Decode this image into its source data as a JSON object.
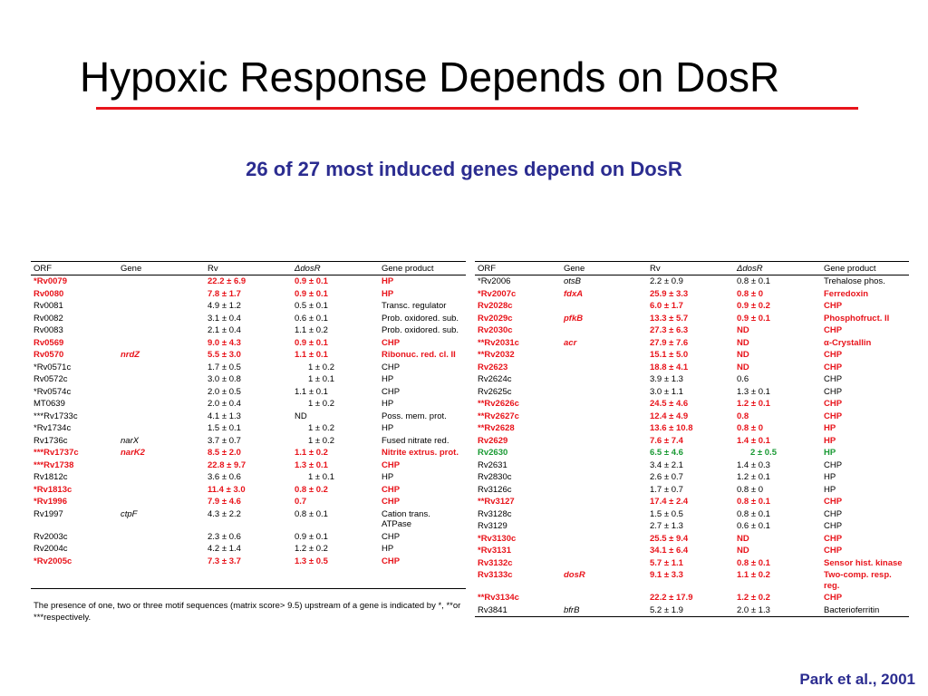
{
  "slide": {
    "title": "Hypoxic Response Depends on DosR",
    "subtitle": "26 of 27 most induced genes depend on DosR",
    "footnote": "The presence of one, two or three motif sequences (matrix score> 9.5) upstream of a gene is indicated by *, **or ***respectively.",
    "citation": "Park et al., 2001"
  },
  "headers": [
    "ORF",
    "Gene",
    "Rv",
    "ΔdosR",
    "Gene product"
  ],
  "colors": {
    "red": "#e8141b",
    "green": "#1a9a34",
    "navy": "#2b2c90"
  },
  "left_rows": [
    {
      "orf": "*Rv0079",
      "gene": "",
      "rv": "22.2 ± 6.9",
      "dosr": "0.9 ± 0.1",
      "product": "HP",
      "style": "red"
    },
    {
      "orf": "Rv0080",
      "gene": "",
      "rv": "7.8 ± 1.7",
      "dosr": "0.9 ± 0.1",
      "product": "HP",
      "style": "red"
    },
    {
      "orf": "Rv0081",
      "gene": "",
      "rv": "4.9 ± 1.2",
      "dosr": "0.5 ± 0.1",
      "product": "Transc. regulator",
      "style": ""
    },
    {
      "orf": "Rv0082",
      "gene": "",
      "rv": "3.1 ± 0.4",
      "dosr": "0.6 ± 0.1",
      "product": "Prob. oxidored. sub.",
      "style": ""
    },
    {
      "orf": "Rv0083",
      "gene": "",
      "rv": "2.1 ± 0.4",
      "dosr": "1.1 ± 0.2",
      "product": "Prob. oxidored. sub.",
      "style": ""
    },
    {
      "orf": "Rv0569",
      "gene": "",
      "rv": "9.0 ± 4.3",
      "dosr": "0.9 ± 0.1",
      "product": "CHP",
      "style": "red"
    },
    {
      "orf": "Rv0570",
      "gene": "nrdZ",
      "rv": "5.5 ± 3.0",
      "dosr": "1.1 ± 0.1",
      "product": "Ribonuc. red. cl. II",
      "style": "red"
    },
    {
      "orf": "*Rv0571c",
      "gene": "",
      "rv": "1.7 ± 0.5",
      "dosr": "1 ± 0.2",
      "product": "CHP",
      "style": "",
      "center": true
    },
    {
      "orf": "Rv0572c",
      "gene": "",
      "rv": "3.0 ± 0.8",
      "dosr": "1 ± 0.1",
      "product": "HP",
      "style": "",
      "center": true
    },
    {
      "orf": "*Rv0574c",
      "gene": "",
      "rv": "2.0 ± 0.5",
      "dosr": "1.1 ± 0.1",
      "product": "CHP",
      "style": ""
    },
    {
      "orf": "MT0639",
      "gene": "",
      "rv": "2.0 ± 0.4",
      "dosr": "1 ± 0.2",
      "product": "HP",
      "style": "",
      "center": true
    },
    {
      "orf": "***Rv1733c",
      "gene": "",
      "rv": "4.1 ± 1.3",
      "dosr": "ND",
      "product": "Poss. mem. prot.",
      "style": ""
    },
    {
      "orf": "*Rv1734c",
      "gene": "",
      "rv": "1.5 ± 0.1",
      "dosr": "1 ± 0.2",
      "product": "HP",
      "style": "",
      "center": true
    },
    {
      "orf": "Rv1736c",
      "gene": "narX",
      "rv": "3.7 ± 0.7",
      "dosr": "1 ± 0.2",
      "product": "Fused nitrate red.",
      "style": "",
      "center": true
    },
    {
      "orf": "***Rv1737c",
      "gene": "narK2",
      "rv": "8.5 ± 2.0",
      "dosr": "1.1 ± 0.2",
      "product": "Nitrite extrus. prot.",
      "style": "red"
    },
    {
      "orf": "***Rv1738",
      "gene": "",
      "rv": "22.8 ± 9.7",
      "dosr": "1.3 ± 0.1",
      "product": "CHP",
      "style": "red"
    },
    {
      "orf": "Rv1812c",
      "gene": "",
      "rv": "3.6 ± 0.6",
      "dosr": "1 ± 0.1",
      "product": "HP",
      "style": "",
      "center": true
    },
    {
      "orf": "*Rv1813c",
      "gene": "",
      "rv": "11.4 ± 3.0",
      "dosr": "0.8 ± 0.2",
      "product": "CHP",
      "style": "red"
    },
    {
      "orf": "*Rv1996",
      "gene": "",
      "rv": "7.9 ± 4.6",
      "dosr": "0.7",
      "product": "CHP",
      "style": "red"
    },
    {
      "orf": "Rv1997",
      "gene": "ctpF",
      "rv": "4.3 ± 2.2",
      "dosr": "0.8 ± 0.1",
      "product": "Cation trans.",
      "product2": "ATPase",
      "style": ""
    },
    {
      "orf": "Rv2003c",
      "gene": "",
      "rv": "2.3 ± 0.6",
      "dosr": "0.9 ± 0.1",
      "product": "CHP",
      "style": ""
    },
    {
      "orf": "Rv2004c",
      "gene": "",
      "rv": "4.2 ± 1.4",
      "dosr": "1.2 ± 0.2",
      "product": "HP",
      "style": ""
    },
    {
      "orf": "*Rv2005c",
      "gene": "",
      "rv": "7.3 ± 3.7",
      "dosr": "1.3 ± 0.5",
      "product": "CHP",
      "style": "red",
      "pad": true
    }
  ],
  "right_rows": [
    {
      "orf": "*Rv2006",
      "gene": "otsB",
      "rv": "2.2 ± 0.9",
      "dosr": "0.8 ± 0.1",
      "product": "Trehalose phos.",
      "style": ""
    },
    {
      "orf": "*Rv2007c",
      "gene": "fdxA",
      "rv": "25.9 ± 3.3",
      "dosr": "0.8 ± 0",
      "product": "Ferredoxin",
      "style": "red"
    },
    {
      "orf": "Rv2028c",
      "gene": "",
      "rv": "6.0 ± 1.7",
      "dosr": "0.9 ± 0.2",
      "product": "CHP",
      "style": "red"
    },
    {
      "orf": "Rv2029c",
      "gene": "pfkB",
      "rv": "13.3 ± 5.7",
      "dosr": "0.9 ± 0.1",
      "product": "Phosphofruct. II",
      "style": "red"
    },
    {
      "orf": "Rv2030c",
      "gene": "",
      "rv": "27.3 ± 6.3",
      "dosr": "ND",
      "product": "CHP",
      "style": "red"
    },
    {
      "orf": "**Rv2031c",
      "gene": "acr",
      "rv": "27.9 ± 7.6",
      "dosr": "ND",
      "product": "α-Crystallin",
      "style": "red"
    },
    {
      "orf": "**Rv2032",
      "gene": "",
      "rv": "15.1 ± 5.0",
      "dosr": "ND",
      "product": "CHP",
      "style": "red"
    },
    {
      "orf": "Rv2623",
      "gene": "",
      "rv": "18.8 ± 4.1",
      "dosr": "ND",
      "product": "CHP",
      "style": "red"
    },
    {
      "orf": "Rv2624c",
      "gene": "",
      "rv": "3.9 ± 1.3",
      "dosr": "0.6",
      "product": "CHP",
      "style": ""
    },
    {
      "orf": "Rv2625c",
      "gene": "",
      "rv": "3.0 ± 1.1",
      "dosr": "1.3 ± 0.1",
      "product": "CHP",
      "style": ""
    },
    {
      "orf": "**Rv2626c",
      "gene": "",
      "rv": "24.5 ± 4.6",
      "dosr": "1.2 ± 0.1",
      "product": "CHP",
      "style": "red"
    },
    {
      "orf": "**Rv2627c",
      "gene": "",
      "rv": "12.4 ± 4.9",
      "dosr": "0.8",
      "product": "CHP",
      "style": "red"
    },
    {
      "orf": "**Rv2628",
      "gene": "",
      "rv": "13.6 ± 10.8",
      "dosr": "0.8 ± 0",
      "product": "HP",
      "style": "red"
    },
    {
      "orf": "Rv2629",
      "gene": "",
      "rv": "7.6 ± 7.4",
      "dosr": "1.4 ± 0.1",
      "product": "HP",
      "style": "red"
    },
    {
      "orf": "Rv2630",
      "gene": "",
      "rv": "6.5 ± 4.6",
      "dosr": "2 ± 0.5",
      "product": "HP",
      "style": "green",
      "center": true
    },
    {
      "orf": "Rv2631",
      "gene": "",
      "rv": "3.4 ± 2.1",
      "dosr": "1.4 ± 0.3",
      "product": "CHP",
      "style": ""
    },
    {
      "orf": "Rv2830c",
      "gene": "",
      "rv": "2.6 ± 0.7",
      "dosr": "1.2 ± 0.1",
      "product": "HP",
      "style": ""
    },
    {
      "orf": "Rv3126c",
      "gene": "",
      "rv": "1.7 ± 0.7",
      "dosr": "0.8 ± 0",
      "product": "HP",
      "style": ""
    },
    {
      "orf": "**Rv3127",
      "gene": "",
      "rv": "17.4 ± 2.4",
      "dosr": "0.8 ± 0.1",
      "product": "CHP",
      "style": "red"
    },
    {
      "orf": "Rv3128c",
      "gene": "",
      "rv": "1.5 ± 0.5",
      "dosr": "0.8 ± 0.1",
      "product": "CHP",
      "style": ""
    },
    {
      "orf": "Rv3129",
      "gene": "",
      "rv": "2.7 ± 1.3",
      "dosr": "0.6 ± 0.1",
      "product": "CHP",
      "style": ""
    },
    {
      "orf": "*Rv3130c",
      "gene": "",
      "rv": "25.5 ± 9.4",
      "dosr": "ND",
      "product": "CHP",
      "style": "red"
    },
    {
      "orf": "*Rv3131",
      "gene": "",
      "rv": "34.1 ± 6.4",
      "dosr": "ND",
      "product": "CHP",
      "style": "red"
    },
    {
      "orf": "Rv3132c",
      "gene": "",
      "rv": "5.7 ± 1.1",
      "dosr": "0.8 ± 0.1",
      "product": "Sensor hist. kinase",
      "style": "red"
    },
    {
      "orf": "Rv3133c",
      "gene": "dosR",
      "rv": "9.1 ± 3.3",
      "dosr": "1.1 ± 0.2",
      "product": "Two-comp. resp.",
      "product2": "reg.",
      "style": "red"
    },
    {
      "orf": "**Rv3134c",
      "gene": "",
      "rv": "22.2 ± 17.9",
      "dosr": "1.2 ± 0.2",
      "product": "CHP",
      "style": "red"
    },
    {
      "orf": "Rv3841",
      "gene": "bfrB",
      "rv": "5.2 ± 1.9",
      "dosr": "2.0 ± 1.3",
      "product": "Bacterioferritin",
      "style": ""
    }
  ]
}
